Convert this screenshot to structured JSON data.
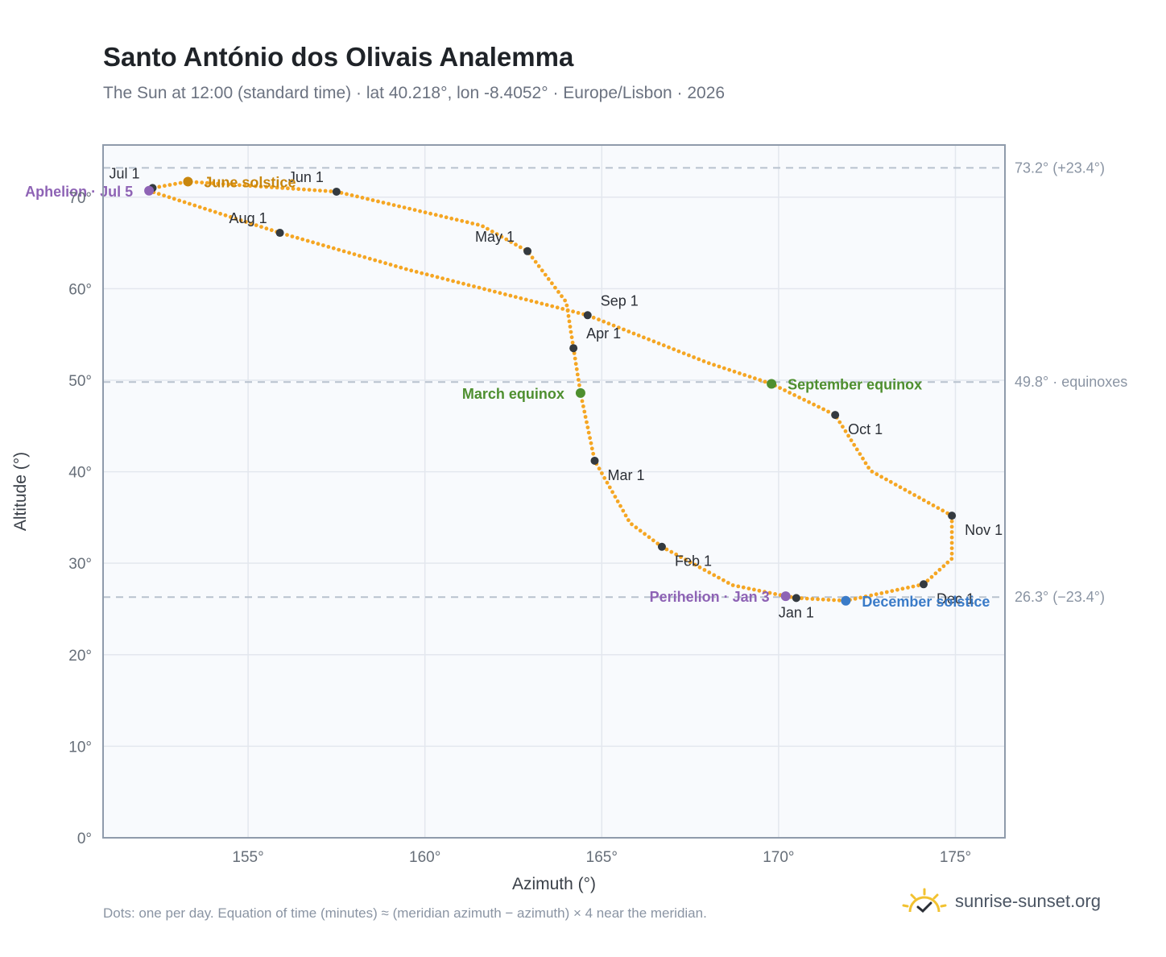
{
  "title": "Santo António dos Olivais Analemma",
  "subtitle": "The Sun at 12:00 (standard time) · lat 40.218°, lon -8.4052° · Europe/Lisbon · 2026",
  "footnote": "Dots: one per day. Equation of time (minutes) ≈ (meridian azimuth − azimuth) × 4 near the meridian.",
  "brand": {
    "text": "sunrise-sunset.org",
    "icon": "sun-check-icon"
  },
  "colors": {
    "curve": "#f5a623",
    "month_marker": "#343a40",
    "solstice_june": "#c8860d",
    "equinox": "#4e8f2f",
    "solstice_december": "#3a7bc8",
    "apsis": "#8e63b5",
    "plot_bg": "#f8fafd",
    "frame": "#8f9bab",
    "grid": "#e3e7ee",
    "ref_line": "#b8c2ce"
  },
  "chart_data": {
    "type": "scatter",
    "xlabel": "Azimuth (°)",
    "ylabel": "Altitude (°)",
    "xlim": [
      150.9,
      176.4
    ],
    "ylim": [
      0,
      75.7
    ],
    "xticks": [
      155,
      160,
      165,
      170,
      175
    ],
    "yticks": [
      0,
      10,
      20,
      30,
      40,
      50,
      60,
      70
    ],
    "xtick_labels": [
      "155°",
      "160°",
      "165°",
      "170°",
      "175°"
    ],
    "ytick_labels": [
      "0°",
      "10°",
      "20°",
      "30°",
      "40°",
      "50°",
      "60°",
      "70°"
    ],
    "grid": true,
    "reference_lines": [
      {
        "altitude": 73.2,
        "label": "73.2° (+23.4°)"
      },
      {
        "altitude": 49.8,
        "label": "49.8° · equinoxes"
      },
      {
        "altitude": 26.3,
        "label": "26.3° (−23.4°)"
      }
    ],
    "analemma_path": [
      [
        170.5,
        26.2
      ],
      [
        171.9,
        25.9
      ],
      [
        174.1,
        27.7
      ],
      [
        174.9,
        30.5
      ],
      [
        174.9,
        35.2
      ],
      [
        172.6,
        40.1
      ],
      [
        171.6,
        46.2
      ],
      [
        169.8,
        49.6
      ],
      [
        168.0,
        51.9
      ],
      [
        164.6,
        57.1
      ],
      [
        159.5,
        62.1
      ],
      [
        155.9,
        66.1
      ],
      [
        152.2,
        70.7
      ],
      [
        152.3,
        71.0
      ],
      [
        153.3,
        71.7
      ],
      [
        157.5,
        70.6
      ],
      [
        161.6,
        66.9
      ],
      [
        162.9,
        64.1
      ],
      [
        164.0,
        58.5
      ],
      [
        164.2,
        53.5
      ],
      [
        164.4,
        48.6
      ],
      [
        164.8,
        41.2
      ],
      [
        165.8,
        34.4
      ],
      [
        166.7,
        31.8
      ],
      [
        168.7,
        27.6
      ],
      [
        170.2,
        26.4
      ],
      [
        170.5,
        26.2
      ]
    ],
    "month_markers": [
      {
        "label": "Jan 1",
        "az": 170.5,
        "alt": 26.2,
        "anchor": "below"
      },
      {
        "label": "Feb 1",
        "az": 166.7,
        "alt": 31.8,
        "anchor": "below-right"
      },
      {
        "label": "Mar 1",
        "az": 164.8,
        "alt": 41.2,
        "anchor": "right"
      },
      {
        "label": "Apr 1",
        "az": 164.2,
        "alt": 53.5,
        "anchor": "above-right"
      },
      {
        "label": "May 1",
        "az": 162.9,
        "alt": 64.1,
        "anchor": "above-left"
      },
      {
        "label": "Jun 1",
        "az": 157.5,
        "alt": 70.6,
        "anchor": "above-left"
      },
      {
        "label": "Jul 1",
        "az": 152.3,
        "alt": 71.0,
        "anchor": "above-left"
      },
      {
        "label": "Aug 1",
        "az": 155.9,
        "alt": 66.1,
        "anchor": "above-left"
      },
      {
        "label": "Sep 1",
        "az": 164.6,
        "alt": 57.1,
        "anchor": "above-right"
      },
      {
        "label": "Oct 1",
        "az": 171.6,
        "alt": 46.2,
        "anchor": "below-right"
      },
      {
        "label": "Nov 1",
        "az": 174.9,
        "alt": 35.2,
        "anchor": "right"
      },
      {
        "label": "Dec 1",
        "az": 174.1,
        "alt": 27.7,
        "anchor": "below-right"
      }
    ],
    "events": [
      {
        "label": "June solstice",
        "az": 153.3,
        "alt": 71.7,
        "color": "#c8860d",
        "side": "right"
      },
      {
        "label": "March equinox",
        "az": 164.4,
        "alt": 48.6,
        "color": "#4e8f2f",
        "side": "left"
      },
      {
        "label": "September equinox",
        "az": 169.8,
        "alt": 49.6,
        "color": "#4e8f2f",
        "side": "right"
      },
      {
        "label": "December solstice",
        "az": 171.9,
        "alt": 25.9,
        "color": "#3a7bc8",
        "side": "right"
      },
      {
        "label": "Aphelion · Jul 5",
        "az": 152.2,
        "alt": 70.7,
        "color": "#8e63b5",
        "side": "left"
      },
      {
        "label": "Perihelion · Jan 3",
        "az": 170.2,
        "alt": 26.4,
        "color": "#8e63b5",
        "side": "left"
      }
    ]
  }
}
